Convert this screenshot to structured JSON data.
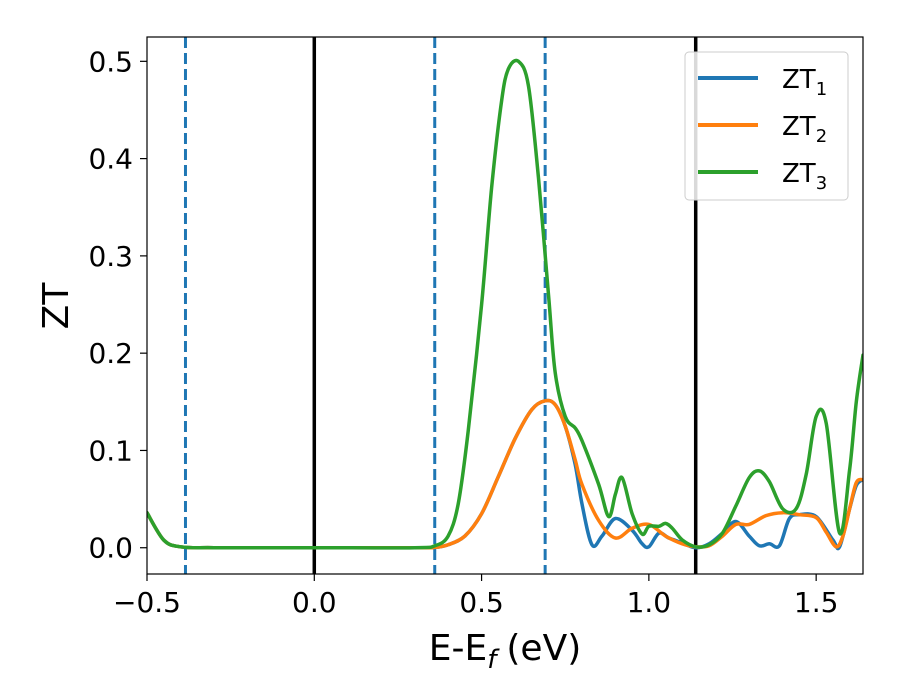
{
  "chart_data": {
    "type": "line",
    "xlabel": "E-E",
    "xlabel_sub": "f",
    "xlabel_unit": "(eV)",
    "ylabel": "ZT",
    "xlim": [
      -0.5,
      1.64
    ],
    "ylim": [
      -0.027,
      0.525
    ],
    "xticks": [
      -0.5,
      0.0,
      0.5,
      1.0,
      1.5
    ],
    "xtick_labels": [
      "−0.5",
      "0.0",
      "0.5",
      "1.0",
      "1.5"
    ],
    "yticks": [
      0.0,
      0.1,
      0.2,
      0.3,
      0.4,
      0.5
    ],
    "ytick_labels": [
      "0.0",
      "0.1",
      "0.2",
      "0.3",
      "0.4",
      "0.5"
    ],
    "legend_position": "top-right",
    "colors": {
      "ZT1": "#1f77b4",
      "ZT2": "#ff7f0e",
      "ZT3": "#2ca02c",
      "solid_line": "#000000",
      "dashed_line": "#1f77b4"
    },
    "vlines": [
      {
        "x": -0.385,
        "style": "dashed",
        "color": "#1f77b4"
      },
      {
        "x": 0.0,
        "style": "solid",
        "color": "#000000"
      },
      {
        "x": 0.36,
        "style": "dashed",
        "color": "#1f77b4"
      },
      {
        "x": 0.69,
        "style": "dashed",
        "color": "#1f77b4"
      },
      {
        "x": 1.14,
        "style": "solid",
        "color": "#000000"
      }
    ],
    "series": [
      {
        "name": "ZT",
        "sub": "1",
        "color": "#1f77b4",
        "x": [
          -0.5,
          -0.45,
          -0.4,
          -0.3,
          0.0,
          0.3,
          0.36,
          0.4,
          0.45,
          0.5,
          0.55,
          0.6,
          0.65,
          0.69,
          0.72,
          0.75,
          0.78,
          0.8,
          0.83,
          0.86,
          0.9,
          0.95,
          0.98,
          1.0,
          1.03,
          1.06,
          1.1,
          1.14,
          1.18,
          1.22,
          1.26,
          1.3,
          1.33,
          1.36,
          1.39,
          1.42,
          1.45,
          1.5,
          1.55,
          1.57,
          1.6,
          1.62,
          1.64
        ],
        "y": [
          0.036,
          0.008,
          0.001,
          0.0,
          0.0,
          0.0,
          0.0003,
          0.003,
          0.012,
          0.035,
          0.073,
          0.112,
          0.142,
          0.151,
          0.147,
          0.125,
          0.085,
          0.045,
          0.003,
          0.012,
          0.03,
          0.018,
          0.004,
          0.001,
          0.015,
          0.01,
          0.005,
          0.0,
          0.004,
          0.015,
          0.027,
          0.012,
          0.002,
          0.004,
          0.002,
          0.03,
          0.034,
          0.032,
          0.008,
          0.001,
          0.04,
          0.064,
          0.07
        ]
      },
      {
        "name": "ZT",
        "sub": "2",
        "color": "#ff7f0e",
        "x": [
          -0.5,
          -0.45,
          -0.4,
          -0.3,
          0.0,
          0.3,
          0.36,
          0.4,
          0.45,
          0.5,
          0.55,
          0.6,
          0.65,
          0.69,
          0.72,
          0.75,
          0.78,
          0.8,
          0.85,
          0.9,
          0.95,
          1.0,
          1.05,
          1.1,
          1.14,
          1.18,
          1.22,
          1.26,
          1.3,
          1.35,
          1.4,
          1.45,
          1.5,
          1.53,
          1.56,
          1.58,
          1.6,
          1.62,
          1.64
        ],
        "y": [
          0.036,
          0.008,
          0.001,
          0.0,
          0.0,
          0.0,
          0.0003,
          0.003,
          0.012,
          0.035,
          0.073,
          0.112,
          0.142,
          0.151,
          0.147,
          0.125,
          0.09,
          0.065,
          0.028,
          0.01,
          0.02,
          0.024,
          0.012,
          0.004,
          0.001,
          0.002,
          0.012,
          0.024,
          0.024,
          0.033,
          0.036,
          0.034,
          0.031,
          0.016,
          0.001,
          0.012,
          0.04,
          0.067,
          0.07
        ]
      },
      {
        "name": "ZT",
        "sub": "3",
        "color": "#2ca02c",
        "x": [
          -0.5,
          -0.45,
          -0.4,
          -0.3,
          0.0,
          0.3,
          0.36,
          0.4,
          0.43,
          0.46,
          0.5,
          0.53,
          0.56,
          0.58,
          0.61,
          0.64,
          0.67,
          0.7,
          0.72,
          0.75,
          0.78,
          0.8,
          0.85,
          0.88,
          0.9,
          0.92,
          0.95,
          0.98,
          1.0,
          1.03,
          1.05,
          1.07,
          1.1,
          1.14,
          1.18,
          1.22,
          1.26,
          1.3,
          1.33,
          1.36,
          1.4,
          1.44,
          1.47,
          1.5,
          1.53,
          1.57,
          1.6,
          1.62,
          1.64
        ],
        "y": [
          0.036,
          0.008,
          0.001,
          0.0,
          0.0,
          0.0,
          0.002,
          0.012,
          0.045,
          0.12,
          0.25,
          0.37,
          0.46,
          0.492,
          0.5,
          0.475,
          0.38,
          0.26,
          0.18,
          0.135,
          0.123,
          0.11,
          0.065,
          0.032,
          0.055,
          0.072,
          0.035,
          0.014,
          0.022,
          0.022,
          0.025,
          0.02,
          0.008,
          0.001,
          0.003,
          0.015,
          0.043,
          0.072,
          0.079,
          0.068,
          0.04,
          0.04,
          0.075,
          0.135,
          0.128,
          0.015,
          0.08,
          0.15,
          0.198
        ]
      }
    ]
  }
}
